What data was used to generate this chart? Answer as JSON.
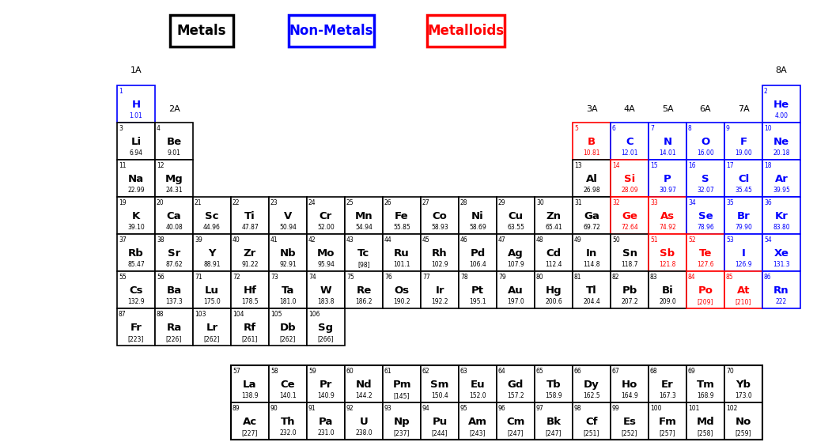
{
  "elements": [
    {
      "num": 1,
      "sym": "H",
      "mass": "1.01",
      "row": 0,
      "col": 0,
      "type": "nonmetal"
    },
    {
      "num": 2,
      "sym": "He",
      "mass": "4.00",
      "row": 0,
      "col": 17,
      "type": "nonmetal"
    },
    {
      "num": 3,
      "sym": "Li",
      "mass": "6.94",
      "row": 1,
      "col": 0,
      "type": "metal"
    },
    {
      "num": 4,
      "sym": "Be",
      "mass": "9.01",
      "row": 1,
      "col": 1,
      "type": "metal"
    },
    {
      "num": 5,
      "sym": "B",
      "mass": "10.81",
      "row": 1,
      "col": 12,
      "type": "metalloid"
    },
    {
      "num": 6,
      "sym": "C",
      "mass": "12.01",
      "row": 1,
      "col": 13,
      "type": "nonmetal"
    },
    {
      "num": 7,
      "sym": "N",
      "mass": "14.01",
      "row": 1,
      "col": 14,
      "type": "nonmetal"
    },
    {
      "num": 8,
      "sym": "O",
      "mass": "16.00",
      "row": 1,
      "col": 15,
      "type": "nonmetal"
    },
    {
      "num": 9,
      "sym": "F",
      "mass": "19.00",
      "row": 1,
      "col": 16,
      "type": "nonmetal"
    },
    {
      "num": 10,
      "sym": "Ne",
      "mass": "20.18",
      "row": 1,
      "col": 17,
      "type": "nonmetal"
    },
    {
      "num": 11,
      "sym": "Na",
      "mass": "22.99",
      "row": 2,
      "col": 0,
      "type": "metal"
    },
    {
      "num": 12,
      "sym": "Mg",
      "mass": "24.31",
      "row": 2,
      "col": 1,
      "type": "metal"
    },
    {
      "num": 13,
      "sym": "Al",
      "mass": "26.98",
      "row": 2,
      "col": 12,
      "type": "metal"
    },
    {
      "num": 14,
      "sym": "Si",
      "mass": "28.09",
      "row": 2,
      "col": 13,
      "type": "metalloid"
    },
    {
      "num": 15,
      "sym": "P",
      "mass": "30.97",
      "row": 2,
      "col": 14,
      "type": "nonmetal"
    },
    {
      "num": 16,
      "sym": "S",
      "mass": "32.07",
      "row": 2,
      "col": 15,
      "type": "nonmetal"
    },
    {
      "num": 17,
      "sym": "Cl",
      "mass": "35.45",
      "row": 2,
      "col": 16,
      "type": "nonmetal"
    },
    {
      "num": 18,
      "sym": "Ar",
      "mass": "39.95",
      "row": 2,
      "col": 17,
      "type": "nonmetal"
    },
    {
      "num": 19,
      "sym": "K",
      "mass": "39.10",
      "row": 3,
      "col": 0,
      "type": "metal"
    },
    {
      "num": 20,
      "sym": "Ca",
      "mass": "40.08",
      "row": 3,
      "col": 1,
      "type": "metal"
    },
    {
      "num": 21,
      "sym": "Sc",
      "mass": "44.96",
      "row": 3,
      "col": 2,
      "type": "metal"
    },
    {
      "num": 22,
      "sym": "Ti",
      "mass": "47.87",
      "row": 3,
      "col": 3,
      "type": "metal"
    },
    {
      "num": 23,
      "sym": "V",
      "mass": "50.94",
      "row": 3,
      "col": 4,
      "type": "metal"
    },
    {
      "num": 24,
      "sym": "Cr",
      "mass": "52.00",
      "row": 3,
      "col": 5,
      "type": "metal"
    },
    {
      "num": 25,
      "sym": "Mn",
      "mass": "54.94",
      "row": 3,
      "col": 6,
      "type": "metal"
    },
    {
      "num": 26,
      "sym": "Fe",
      "mass": "55.85",
      "row": 3,
      "col": 7,
      "type": "metal"
    },
    {
      "num": 27,
      "sym": "Co",
      "mass": "58.93",
      "row": 3,
      "col": 8,
      "type": "metal"
    },
    {
      "num": 28,
      "sym": "Ni",
      "mass": "58.69",
      "row": 3,
      "col": 9,
      "type": "metal"
    },
    {
      "num": 29,
      "sym": "Cu",
      "mass": "63.55",
      "row": 3,
      "col": 10,
      "type": "metal"
    },
    {
      "num": 30,
      "sym": "Zn",
      "mass": "65.41",
      "row": 3,
      "col": 11,
      "type": "metal"
    },
    {
      "num": 31,
      "sym": "Ga",
      "mass": "69.72",
      "row": 3,
      "col": 12,
      "type": "metal"
    },
    {
      "num": 32,
      "sym": "Ge",
      "mass": "72.64",
      "row": 3,
      "col": 13,
      "type": "metalloid"
    },
    {
      "num": 33,
      "sym": "As",
      "mass": "74.92",
      "row": 3,
      "col": 14,
      "type": "metalloid"
    },
    {
      "num": 34,
      "sym": "Se",
      "mass": "78.96",
      "row": 3,
      "col": 15,
      "type": "nonmetal"
    },
    {
      "num": 35,
      "sym": "Br",
      "mass": "79.90",
      "row": 3,
      "col": 16,
      "type": "nonmetal"
    },
    {
      "num": 36,
      "sym": "Kr",
      "mass": "83.80",
      "row": 3,
      "col": 17,
      "type": "nonmetal"
    },
    {
      "num": 37,
      "sym": "Rb",
      "mass": "85.47",
      "row": 4,
      "col": 0,
      "type": "metal"
    },
    {
      "num": 38,
      "sym": "Sr",
      "mass": "87.62",
      "row": 4,
      "col": 1,
      "type": "metal"
    },
    {
      "num": 39,
      "sym": "Y",
      "mass": "88.91",
      "row": 4,
      "col": 2,
      "type": "metal"
    },
    {
      "num": 40,
      "sym": "Zr",
      "mass": "91.22",
      "row": 4,
      "col": 3,
      "type": "metal"
    },
    {
      "num": 41,
      "sym": "Nb",
      "mass": "92.91",
      "row": 4,
      "col": 4,
      "type": "metal"
    },
    {
      "num": 42,
      "sym": "Mo",
      "mass": "95.94",
      "row": 4,
      "col": 5,
      "type": "metal"
    },
    {
      "num": 43,
      "sym": "Tc",
      "mass": "[98]",
      "row": 4,
      "col": 6,
      "type": "metal"
    },
    {
      "num": 44,
      "sym": "Ru",
      "mass": "101.1",
      "row": 4,
      "col": 7,
      "type": "metal"
    },
    {
      "num": 45,
      "sym": "Rh",
      "mass": "102.9",
      "row": 4,
      "col": 8,
      "type": "metal"
    },
    {
      "num": 46,
      "sym": "Pd",
      "mass": "106.4",
      "row": 4,
      "col": 9,
      "type": "metal"
    },
    {
      "num": 47,
      "sym": "Ag",
      "mass": "107.9",
      "row": 4,
      "col": 10,
      "type": "metal"
    },
    {
      "num": 48,
      "sym": "Cd",
      "mass": "112.4",
      "row": 4,
      "col": 11,
      "type": "metal"
    },
    {
      "num": 49,
      "sym": "In",
      "mass": "114.8",
      "row": 4,
      "col": 12,
      "type": "metal"
    },
    {
      "num": 50,
      "sym": "Sn",
      "mass": "118.7",
      "row": 4,
      "col": 13,
      "type": "metal"
    },
    {
      "num": 51,
      "sym": "Sb",
      "mass": "121.8",
      "row": 4,
      "col": 14,
      "type": "metalloid"
    },
    {
      "num": 52,
      "sym": "Te",
      "mass": "127.6",
      "row": 4,
      "col": 15,
      "type": "metalloid"
    },
    {
      "num": 53,
      "sym": "I",
      "mass": "126.9",
      "row": 4,
      "col": 16,
      "type": "nonmetal"
    },
    {
      "num": 54,
      "sym": "Xe",
      "mass": "131.3",
      "row": 4,
      "col": 17,
      "type": "nonmetal"
    },
    {
      "num": 55,
      "sym": "Cs",
      "mass": "132.9",
      "row": 5,
      "col": 0,
      "type": "metal"
    },
    {
      "num": 56,
      "sym": "Ba",
      "mass": "137.3",
      "row": 5,
      "col": 1,
      "type": "metal"
    },
    {
      "num": 71,
      "sym": "Lu",
      "mass": "175.0",
      "row": 5,
      "col": 2,
      "type": "metal"
    },
    {
      "num": 72,
      "sym": "Hf",
      "mass": "178.5",
      "row": 5,
      "col": 3,
      "type": "metal"
    },
    {
      "num": 73,
      "sym": "Ta",
      "mass": "181.0",
      "row": 5,
      "col": 4,
      "type": "metal"
    },
    {
      "num": 74,
      "sym": "W",
      "mass": "183.8",
      "row": 5,
      "col": 5,
      "type": "metal"
    },
    {
      "num": 75,
      "sym": "Re",
      "mass": "186.2",
      "row": 5,
      "col": 6,
      "type": "metal"
    },
    {
      "num": 76,
      "sym": "Os",
      "mass": "190.2",
      "row": 5,
      "col": 7,
      "type": "metal"
    },
    {
      "num": 77,
      "sym": "Ir",
      "mass": "192.2",
      "row": 5,
      "col": 8,
      "type": "metal"
    },
    {
      "num": 78,
      "sym": "Pt",
      "mass": "195.1",
      "row": 5,
      "col": 9,
      "type": "metal"
    },
    {
      "num": 79,
      "sym": "Au",
      "mass": "197.0",
      "row": 5,
      "col": 10,
      "type": "metal"
    },
    {
      "num": 80,
      "sym": "Hg",
      "mass": "200.6",
      "row": 5,
      "col": 11,
      "type": "metal"
    },
    {
      "num": 81,
      "sym": "Tl",
      "mass": "204.4",
      "row": 5,
      "col": 12,
      "type": "metal"
    },
    {
      "num": 82,
      "sym": "Pb",
      "mass": "207.2",
      "row": 5,
      "col": 13,
      "type": "metal"
    },
    {
      "num": 83,
      "sym": "Bi",
      "mass": "209.0",
      "row": 5,
      "col": 14,
      "type": "metal"
    },
    {
      "num": 84,
      "sym": "Po",
      "mass": "[209]",
      "row": 5,
      "col": 15,
      "type": "metalloid"
    },
    {
      "num": 85,
      "sym": "At",
      "mass": "[210]",
      "row": 5,
      "col": 16,
      "type": "metalloid"
    },
    {
      "num": 86,
      "sym": "Rn",
      "mass": "222",
      "row": 5,
      "col": 17,
      "type": "nonmetal"
    },
    {
      "num": 87,
      "sym": "Fr",
      "mass": "[223]",
      "row": 6,
      "col": 0,
      "type": "metal"
    },
    {
      "num": 88,
      "sym": "Ra",
      "mass": "[226]",
      "row": 6,
      "col": 1,
      "type": "metal"
    },
    {
      "num": 103,
      "sym": "Lr",
      "mass": "[262]",
      "row": 6,
      "col": 2,
      "type": "metal"
    },
    {
      "num": 104,
      "sym": "Rf",
      "mass": "[261]",
      "row": 6,
      "col": 3,
      "type": "metal"
    },
    {
      "num": 105,
      "sym": "Db",
      "mass": "[262]",
      "row": 6,
      "col": 4,
      "type": "metal"
    },
    {
      "num": 106,
      "sym": "Sg",
      "mass": "[266]",
      "row": 6,
      "col": 5,
      "type": "metal"
    },
    {
      "num": 57,
      "sym": "La",
      "mass": "138.9",
      "row": 8,
      "col": 3,
      "type": "lanthanide"
    },
    {
      "num": 58,
      "sym": "Ce",
      "mass": "140.1",
      "row": 8,
      "col": 4,
      "type": "lanthanide"
    },
    {
      "num": 59,
      "sym": "Pr",
      "mass": "140.9",
      "row": 8,
      "col": 5,
      "type": "lanthanide"
    },
    {
      "num": 60,
      "sym": "Nd",
      "mass": "144.2",
      "row": 8,
      "col": 6,
      "type": "lanthanide"
    },
    {
      "num": 61,
      "sym": "Pm",
      "mass": "[145]",
      "row": 8,
      "col": 7,
      "type": "lanthanide"
    },
    {
      "num": 62,
      "sym": "Sm",
      "mass": "150.4",
      "row": 8,
      "col": 8,
      "type": "lanthanide"
    },
    {
      "num": 63,
      "sym": "Eu",
      "mass": "152.0",
      "row": 8,
      "col": 9,
      "type": "lanthanide"
    },
    {
      "num": 64,
      "sym": "Gd",
      "mass": "157.2",
      "row": 8,
      "col": 10,
      "type": "lanthanide"
    },
    {
      "num": 65,
      "sym": "Tb",
      "mass": "158.9",
      "row": 8,
      "col": 11,
      "type": "lanthanide"
    },
    {
      "num": 66,
      "sym": "Dy",
      "mass": "162.5",
      "row": 8,
      "col": 12,
      "type": "lanthanide"
    },
    {
      "num": 67,
      "sym": "Ho",
      "mass": "164.9",
      "row": 8,
      "col": 13,
      "type": "lanthanide"
    },
    {
      "num": 68,
      "sym": "Er",
      "mass": "167.3",
      "row": 8,
      "col": 14,
      "type": "lanthanide"
    },
    {
      "num": 69,
      "sym": "Tm",
      "mass": "168.9",
      "row": 8,
      "col": 15,
      "type": "lanthanide"
    },
    {
      "num": 70,
      "sym": "Yb",
      "mass": "173.0",
      "row": 8,
      "col": 16,
      "type": "lanthanide"
    },
    {
      "num": 89,
      "sym": "Ac",
      "mass": "[227]",
      "row": 9,
      "col": 3,
      "type": "actinide"
    },
    {
      "num": 90,
      "sym": "Th",
      "mass": "232.0",
      "row": 9,
      "col": 4,
      "type": "actinide"
    },
    {
      "num": 91,
      "sym": "Pa",
      "mass": "231.0",
      "row": 9,
      "col": 5,
      "type": "actinide"
    },
    {
      "num": 92,
      "sym": "U",
      "mass": "238.0",
      "row": 9,
      "col": 6,
      "type": "actinide"
    },
    {
      "num": 93,
      "sym": "Np",
      "mass": "[237]",
      "row": 9,
      "col": 7,
      "type": "actinide"
    },
    {
      "num": 94,
      "sym": "Pu",
      "mass": "[244]",
      "row": 9,
      "col": 8,
      "type": "actinide"
    },
    {
      "num": 95,
      "sym": "Am",
      "mass": "[243]",
      "row": 9,
      "col": 9,
      "type": "actinide"
    },
    {
      "num": 96,
      "sym": "Cm",
      "mass": "[247]",
      "row": 9,
      "col": 10,
      "type": "actinide"
    },
    {
      "num": 97,
      "sym": "Bk",
      "mass": "[247]",
      "row": 9,
      "col": 11,
      "type": "actinide"
    },
    {
      "num": 98,
      "sym": "Cf",
      "mass": "[251]",
      "row": 9,
      "col": 12,
      "type": "actinide"
    },
    {
      "num": 99,
      "sym": "Es",
      "mass": "[252]",
      "row": 9,
      "col": 13,
      "type": "actinide"
    },
    {
      "num": 100,
      "sym": "Fm",
      "mass": "[257]",
      "row": 9,
      "col": 14,
      "type": "actinide"
    },
    {
      "num": 101,
      "sym": "Md",
      "mass": "[258]",
      "row": 9,
      "col": 15,
      "type": "actinide"
    },
    {
      "num": 102,
      "sym": "No",
      "mass": "[259]",
      "row": 9,
      "col": 16,
      "type": "actinide"
    }
  ],
  "type_colors": {
    "metal": "black",
    "nonmetal": "blue",
    "metalloid": "red",
    "lanthanide": "black",
    "actinide": "black"
  },
  "border_colors": {
    "metal": "black",
    "nonmetal": "blue",
    "metalloid": "red",
    "lanthanide": "black",
    "actinide": "black"
  },
  "legend": [
    {
      "label": "Metals",
      "border": "black",
      "text": "black"
    },
    {
      "label": "Non-Metals",
      "border": "blue",
      "text": "blue"
    },
    {
      "label": "Metalloids",
      "border": "red",
      "text": "red"
    }
  ],
  "group_labels": [
    {
      "label": "1A",
      "col": 0
    },
    {
      "label": "2A",
      "col": 1
    },
    {
      "label": "3A",
      "col": 12
    },
    {
      "label": "4A",
      "col": 13
    },
    {
      "label": "5A",
      "col": 14
    },
    {
      "label": "6A",
      "col": 15
    },
    {
      "label": "7A",
      "col": 16
    },
    {
      "label": "8A",
      "col": 17
    }
  ]
}
